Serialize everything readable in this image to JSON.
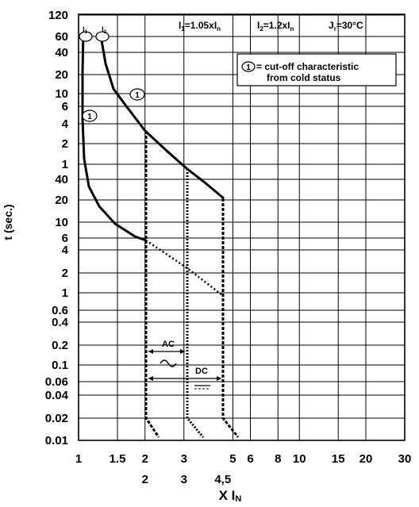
{
  "chart_data": {
    "type": "line",
    "title": "",
    "xlabel": "X Iₙ",
    "ylabel": "t (sec.)",
    "x_scale": "log",
    "y_scale": "log",
    "xlim": [
      1,
      30
    ],
    "x_ticks": [
      "1",
      "1.5",
      "2",
      "3",
      "5",
      "6",
      "8",
      "10",
      "15",
      "20",
      "30"
    ],
    "x_ticks_lower": [
      "2",
      "3",
      "4,5"
    ],
    "y_ticks_upper_minutes": [
      "120",
      "60",
      "40",
      "20",
      "10",
      "6",
      "4",
      "2",
      "1"
    ],
    "y_ticks_seconds": [
      "40",
      "20",
      "10",
      "6",
      "4",
      "2",
      "1",
      "0.6",
      "0.4",
      "0.2",
      "0.1",
      "0.06",
      "0.04",
      "0.02",
      "0.01"
    ],
    "header": {
      "i1_sub": "1",
      "i1_text": "=1.05xI",
      "i1_sub2": "n",
      "i2_sub": "2",
      "i2_text": "=1.2xI",
      "i2_sub2": "n",
      "jr_sub": "r",
      "jr_text": "=30°C"
    },
    "legend": {
      "marker": "1",
      "line1": "= cut-off characteristic",
      "line2": "from cold status"
    },
    "markers": {
      "i1": "I",
      "i1_sub": "1",
      "i2": "I",
      "i2_sub": "2",
      "cold_a": "1",
      "cold_b": "1"
    },
    "annotations": {
      "ac": "AC",
      "ac_symbol": "~",
      "dc": "DC",
      "dc_symbol": "═"
    },
    "series": [
      {
        "style": "solid",
        "points": [
          [
            1.0,
            "60 min"
          ],
          [
            1.02,
            "20 min"
          ],
          [
            1.03,
            "5 min"
          ],
          [
            1.05,
            "2 min"
          ],
          [
            1.1,
            "40 s"
          ],
          [
            1.2,
            "20 s"
          ],
          [
            1.4,
            "12 s"
          ],
          [
            1.7,
            "8 s"
          ],
          [
            1.95,
            "6 s"
          ]
        ]
      },
      {
        "style": "solid",
        "points": [
          [
            1.28,
            "60 min"
          ],
          [
            1.4,
            "15 min"
          ],
          [
            1.6,
            "9 min"
          ],
          [
            1.9,
            "4 min"
          ],
          [
            2.5,
            "1.5 min"
          ],
          [
            3.0,
            "1 min"
          ],
          [
            4.5,
            "20 s"
          ]
        ]
      },
      {
        "style": "dotted",
        "points": [
          [
            2,
            "6 s"
          ],
          [
            3,
            "2.5 s"
          ],
          [
            4.5,
            "1 s"
          ]
        ]
      },
      {
        "style": "dashed",
        "name": "",
        "points": [
          [
            2,
            "3 min"
          ],
          [
            2,
            "0.02 s"
          ],
          [
            2.2,
            "0.01 s"
          ]
        ]
      },
      {
        "style": "dotted",
        "points": [
          [
            3,
            "1 min"
          ],
          [
            3,
            "0.02 s"
          ],
          [
            3.3,
            "0.01 s"
          ]
        ]
      },
      {
        "style": "dashed",
        "points": [
          [
            4.5,
            "20 s"
          ],
          [
            4.5,
            "0.02 s"
          ],
          [
            5,
            "0.01 s"
          ]
        ]
      }
    ]
  }
}
